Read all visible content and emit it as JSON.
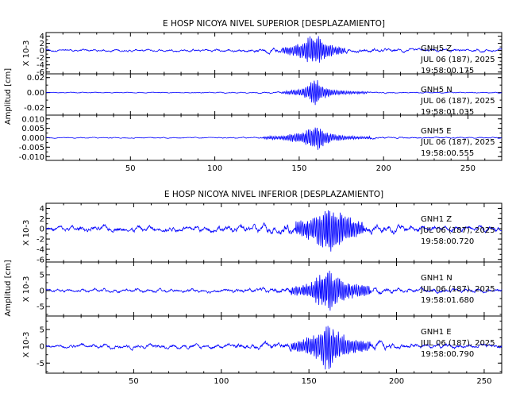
{
  "chart_data": [
    {
      "type": "line",
      "title": "E HOSP NICOYA NIVEL SUPERIOR [DESPLAZAMIENTO]",
      "ylabel": "Amplitud [cm]",
      "xlim": [
        0,
        270
      ],
      "xticks": [
        50,
        100,
        150,
        200,
        250
      ],
      "xtick_labels": [
        "50",
        "100",
        "150",
        "200",
        "250"
      ],
      "panels": [
        {
          "channel": "GNH5 Z",
          "date": "JUL 06 (187), 2025",
          "time": "19:58:00.175",
          "yaxis_label": "X 10-3",
          "ylim": [
            -6.5,
            5
          ],
          "yticks": [
            4,
            2,
            0,
            -2,
            -4,
            -6
          ],
          "ytick_labels": [
            "4",
            "2",
            "0",
            "-2",
            "-4",
            "-6"
          ],
          "series": {
            "x": [
              0,
              20,
              40,
              60,
              80,
              100,
              120,
              140,
              150,
              155,
              158,
              160,
              162,
              165,
              170,
              180,
              200,
              230,
              270
            ],
            "envelope": [
              0.4,
              0.4,
              0.4,
              0.4,
              0.4,
              0.5,
              0.5,
              1.0,
              2.0,
              3.5,
              4.8,
              5.0,
              4.0,
              2.5,
              1.5,
              0.8,
              0.6,
              0.5,
              0.5
            ]
          }
        },
        {
          "channel": "GNH5 N",
          "date": "JUL 06 (187), 2025",
          "time": "19:58:01.035",
          "yaxis_label": "",
          "ylim": [
            -0.03,
            0.025
          ],
          "yticks": [
            0.02,
            0.0,
            -0.02
          ],
          "ytick_labels": [
            "0.02",
            "0.00",
            "-0.02"
          ],
          "series": {
            "x": [
              0,
              20,
              40,
              60,
              80,
              100,
              120,
              140,
              150,
              155,
              158,
              160,
              162,
              165,
              170,
              180,
              200,
              230,
              270
            ],
            "envelope": [
              0.0006,
              0.0006,
              0.0006,
              0.0006,
              0.0006,
              0.0007,
              0.0008,
              0.0015,
              0.005,
              0.009,
              0.018,
              0.02,
              0.013,
              0.008,
              0.004,
              0.002,
              0.001,
              0.0008,
              0.0007
            ]
          }
        },
        {
          "channel": "GNH5 E",
          "date": "JUL 06 (187), 2025",
          "time": "19:58:00.555",
          "yaxis_label": "",
          "ylim": [
            -0.012,
            0.012
          ],
          "yticks": [
            0.01,
            0.005,
            0.0,
            -0.005,
            -0.01
          ],
          "ytick_labels": [
            "0.010",
            "0.005",
            "0.000",
            "-0.005",
            "-0.010"
          ],
          "series": {
            "x": [
              0,
              20,
              40,
              60,
              80,
              100,
              120,
              140,
              150,
              155,
              158,
              160,
              162,
              165,
              170,
              180,
              200,
              230,
              270
            ],
            "envelope": [
              0.0003,
              0.0003,
              0.0003,
              0.0003,
              0.0003,
              0.0003,
              0.0004,
              0.0012,
              0.003,
              0.005,
              0.007,
              0.008,
              0.006,
              0.004,
              0.002,
              0.001,
              0.0006,
              0.0004,
              0.0004
            ]
          }
        }
      ]
    },
    {
      "type": "line",
      "title": "E HOSP NICOYA NIVEL INFERIOR [DESPLAZAMIENTO]",
      "ylabel": "Amplitud [cm]",
      "xlim": [
        0,
        260
      ],
      "xticks": [
        50,
        100,
        150,
        200,
        250
      ],
      "xtick_labels": [
        "50",
        "100",
        "150",
        "200",
        "250"
      ],
      "panels": [
        {
          "channel": "GNH1 Z",
          "date": "JUL 06 (187), 2025",
          "time": "19:58:00.720",
          "yaxis_label": "X 10-3",
          "ylim": [
            -6.5,
            5
          ],
          "yticks": [
            4,
            2,
            0,
            -2,
            -4,
            -6
          ],
          "ytick_labels": [
            "4",
            "2",
            "0",
            "-2",
            "-4",
            "-6"
          ],
          "series": {
            "x": [
              0,
              20,
              40,
              60,
              80,
              100,
              120,
              135,
              145,
              152,
              156,
              160,
              164,
              168,
              175,
              185,
              200,
              230,
              260
            ],
            "envelope": [
              0.6,
              0.7,
              0.7,
              0.7,
              0.7,
              0.8,
              0.9,
              1.2,
              1.6,
              2.5,
              3.5,
              5.0,
              4.5,
              3.5,
              2.0,
              1.2,
              0.9,
              0.7,
              0.6
            ]
          }
        },
        {
          "channel": "GNH1 N",
          "date": "JUL 06 (187), 2025",
          "time": "19:58:01.680",
          "yaxis_label": "X 10-3",
          "ylim": [
            -8,
            9
          ],
          "yticks": [
            5,
            0,
            -5
          ],
          "ytick_labels": [
            "5",
            "0",
            "-5"
          ],
          "series": {
            "x": [
              0,
              20,
              40,
              60,
              80,
              100,
              120,
              135,
              145,
              152,
              156,
              160,
              164,
              168,
              175,
              185,
              200,
              230,
              260
            ],
            "envelope": [
              0.6,
              0.7,
              0.7,
              0.7,
              0.7,
              0.8,
              0.9,
              1.2,
              1.8,
              3.0,
              5.0,
              7.5,
              6.0,
              4.0,
              2.5,
              1.5,
              1.0,
              0.8,
              0.7
            ]
          }
        },
        {
          "channel": "GNH1 E",
          "date": "JUL 06 (187), 2025",
          "time": "19:58:00.790",
          "yaxis_label": "X 10-3",
          "ylim": [
            -8,
            9
          ],
          "yticks": [
            5,
            0,
            -5
          ],
          "ytick_labels": [
            "5",
            "0",
            "-5"
          ],
          "series": {
            "x": [
              0,
              20,
              40,
              60,
              80,
              100,
              120,
              135,
              145,
              152,
              156,
              160,
              164,
              168,
              175,
              185,
              200,
              230,
              260
            ],
            "envelope": [
              0.6,
              0.8,
              0.8,
              0.8,
              0.8,
              0.8,
              1.0,
              1.2,
              1.8,
              3.5,
              5.5,
              8.0,
              6.5,
              4.0,
              2.5,
              1.5,
              1.0,
              0.8,
              0.7
            ]
          }
        }
      ]
    }
  ]
}
